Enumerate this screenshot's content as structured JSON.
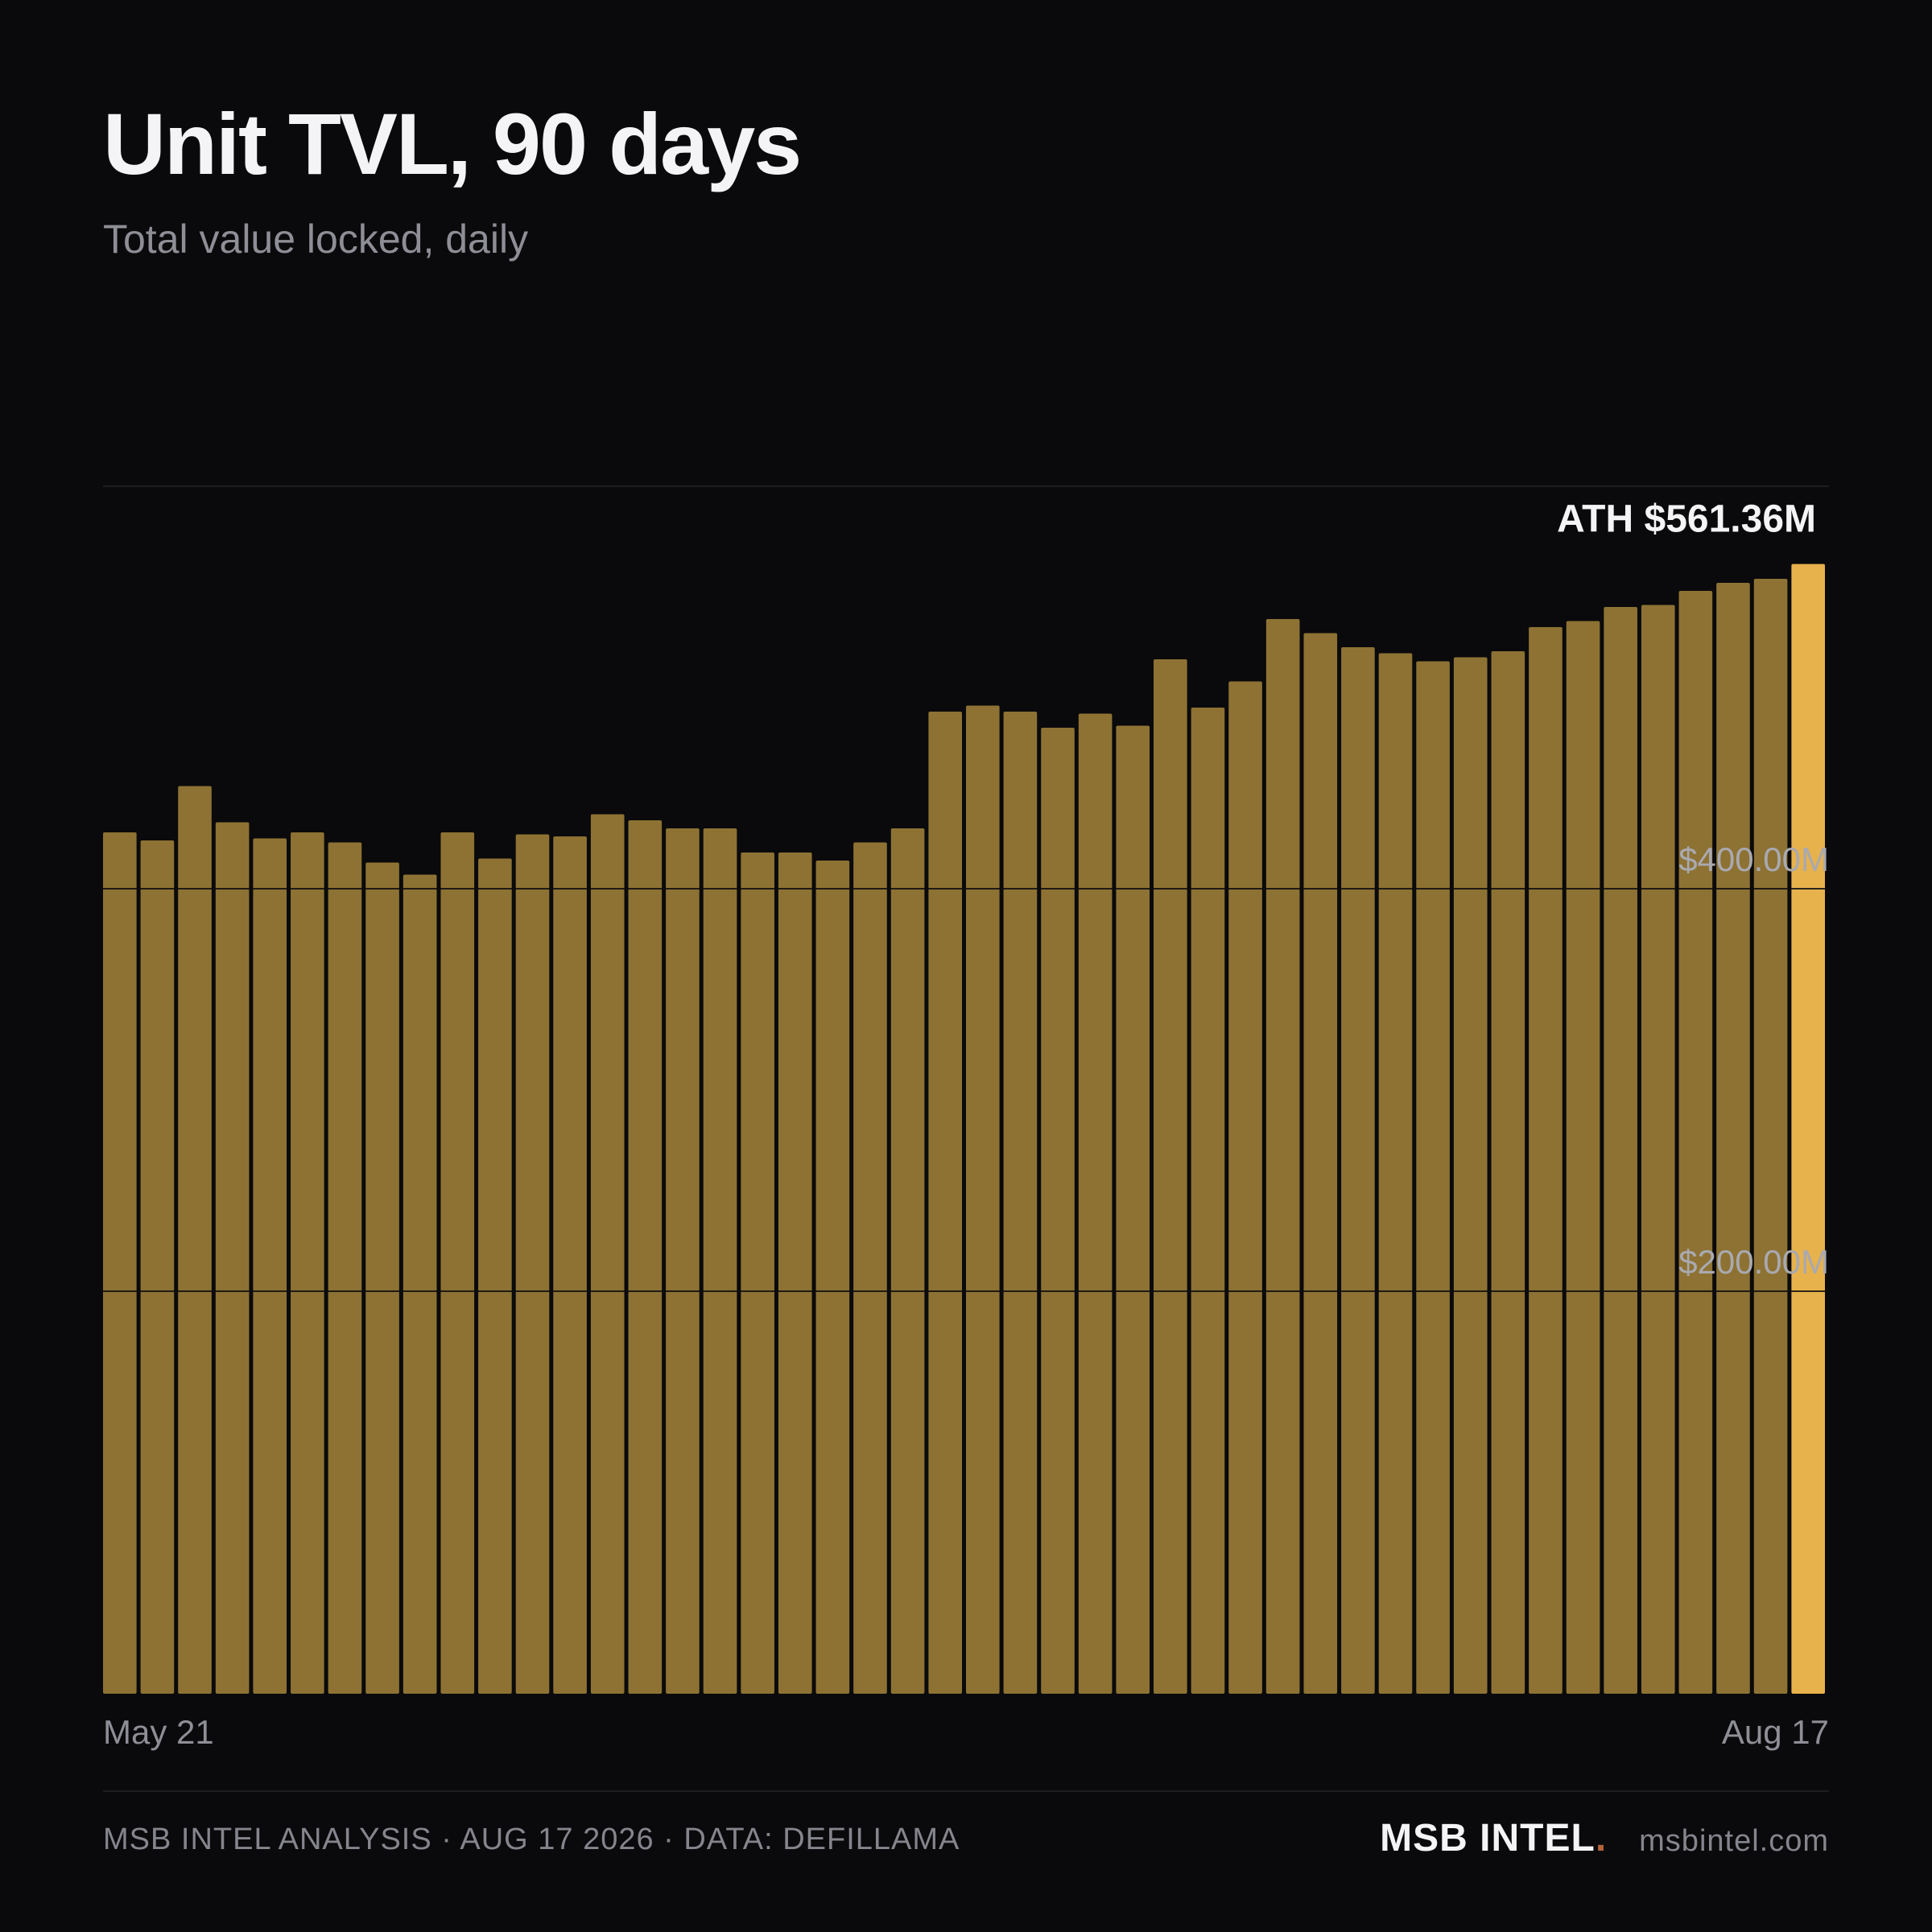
{
  "chart_data": {
    "type": "bar",
    "title": "Unit TVL, 90 days",
    "subtitle": "Total value locked, daily",
    "x_start_label": "May 21",
    "x_end_label": "Aug 17",
    "ylim": [
      0,
      600
    ],
    "y_ticks": [
      {
        "value": 200,
        "label": "$200.00M"
      },
      {
        "value": 400,
        "label": "$400.00M"
      }
    ],
    "grid": true,
    "values": [
      428,
      424,
      451,
      433,
      425,
      428,
      423,
      413,
      407,
      428,
      415,
      427,
      426,
      437,
      434,
      430,
      430,
      418,
      418,
      414,
      423,
      430,
      488,
      491,
      488,
      480,
      487,
      481,
      514,
      490,
      503,
      534,
      527,
      520,
      517,
      513,
      515,
      518,
      530,
      533,
      540,
      541,
      548,
      552,
      554,
      561.36
    ],
    "annotation": {
      "text": "ATH $561.36M",
      "index": 45
    },
    "colors": {
      "bar": "#8d7233",
      "highlight": "#e7b24c",
      "background": "#0a0a0c",
      "grid": "#2a2a2e"
    }
  },
  "footer": {
    "source": "MSB INTEL ANALYSIS · AUG 17 2026 · DATA: DEFILLAMA",
    "brand": "MSB INTEL",
    "brand_dot": ".",
    "site": "msbintel.com"
  }
}
